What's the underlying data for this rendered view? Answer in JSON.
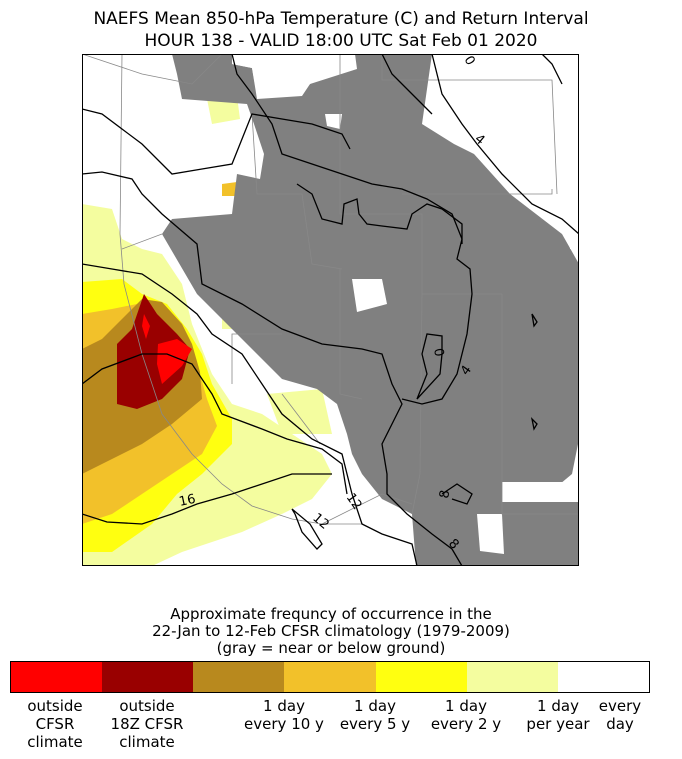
{
  "title": {
    "line1": "NAEFS Mean 850-hPa Temperature (C) and Return Interval",
    "line2": "HOUR 138 - VALID 18:00 UTC Sat Feb 01 2020"
  },
  "colors": {
    "ground": "#808080",
    "red": "#ff0000",
    "darkred": "#990000",
    "brown": "#b8891e",
    "gold": "#f2c12a",
    "yellow": "#ffff10",
    "paleyellow": "#f4fd9f",
    "white": "#ffffff"
  },
  "map": {
    "contour_labels": [
      {
        "text": "16",
        "name": "contour-label-16"
      },
      {
        "text": "12",
        "name": "contour-label-12-a"
      },
      {
        "text": "12",
        "name": "contour-label-12-b"
      },
      {
        "text": "8",
        "name": "contour-label-8-a"
      },
      {
        "text": "8",
        "name": "contour-label-8-b"
      },
      {
        "text": "4",
        "name": "contour-label-4-a"
      },
      {
        "text": "4",
        "name": "contour-label-4-b"
      },
      {
        "text": "0",
        "name": "contour-label-0-a"
      },
      {
        "text": "0",
        "name": "contour-label-0-b"
      }
    ]
  },
  "legend": {
    "header_line1": "Approximate frequncy of occurrence in the",
    "header_line2": "22-Jan to 12-Feb CFSR climatology (1979-2009)",
    "header_line3": "(gray = near or below ground)",
    "labels": [
      "outside\nCFSR\nclimate",
      "outside\n18Z CFSR\nclimate",
      "1 day\nevery 10 y",
      "1 day\nevery 5 y",
      "1 day\nevery 2 y",
      "1 day\nper year",
      "every\nday"
    ]
  }
}
